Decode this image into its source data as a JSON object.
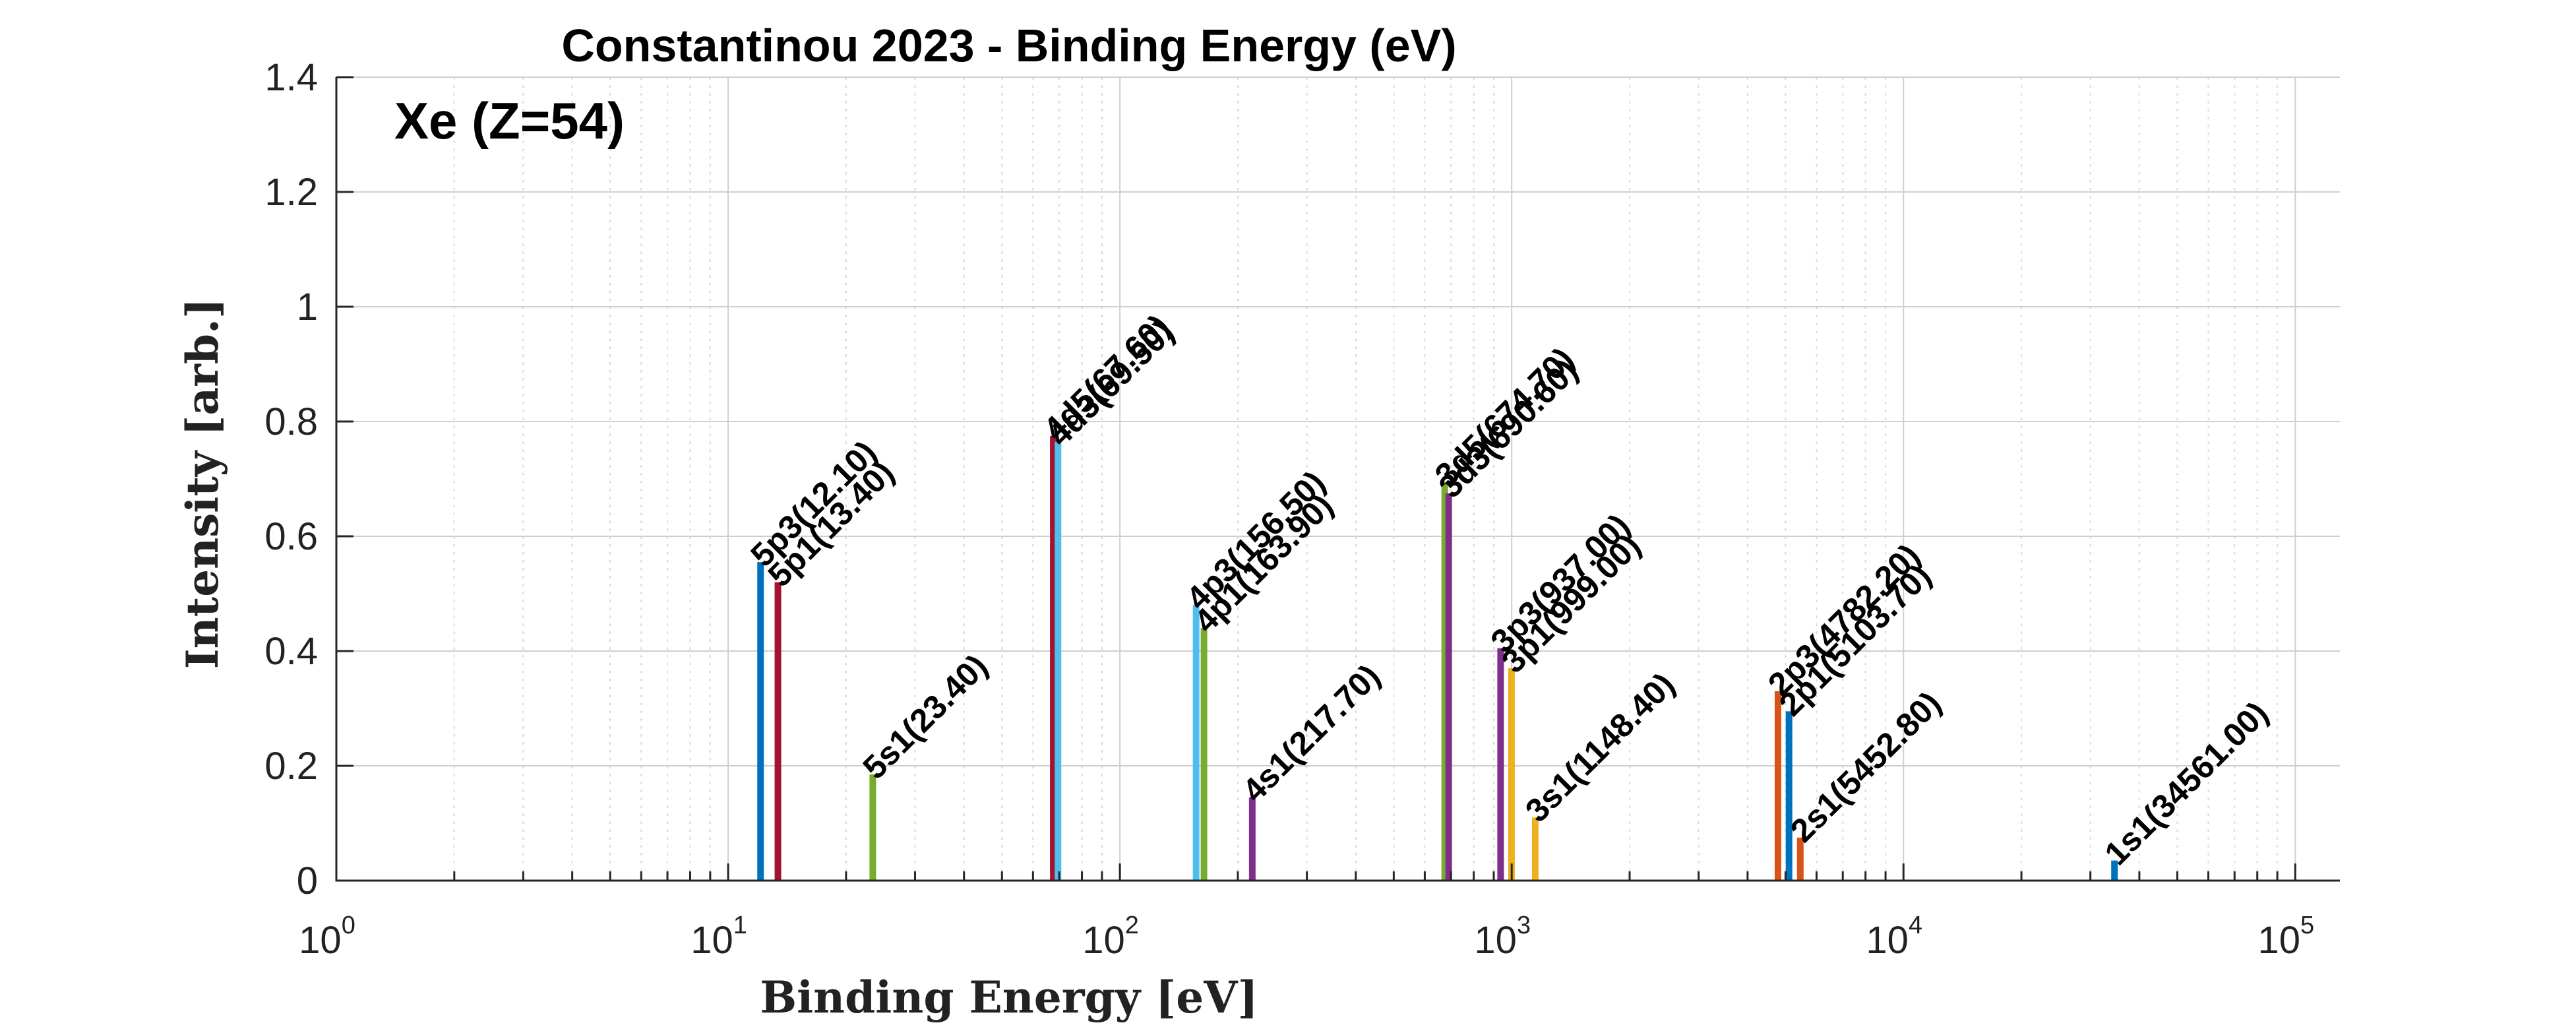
{
  "chart_data": {
    "type": "bar",
    "title": "Constantinou 2023 - Binding Energy (eV)",
    "annotation": "Xe (Z=54)",
    "xlabel": "Binding Energy [eV]",
    "ylabel": "Intensity [arb.]",
    "xscale": "log",
    "xlim": [
      1,
      130000
    ],
    "ylim": [
      0,
      1.4
    ],
    "x_ticks": [
      {
        "base": "10",
        "exp": "0",
        "value": 1
      },
      {
        "base": "10",
        "exp": "1",
        "value": 10
      },
      {
        "base": "10",
        "exp": "2",
        "value": 100
      },
      {
        "base": "10",
        "exp": "3",
        "value": 1000
      },
      {
        "base": "10",
        "exp": "4",
        "value": 10000
      },
      {
        "base": "10",
        "exp": "5",
        "value": 100000
      }
    ],
    "y_ticks": [
      "0",
      "0.2",
      "0.4",
      "0.6",
      "0.8",
      "1",
      "1.2",
      "1.4"
    ],
    "grid": true,
    "series": [
      {
        "label": "5p3(12.10)",
        "x": 12.1,
        "y": 0.555,
        "color": "#0072BD"
      },
      {
        "label": "5p1(13.40)",
        "x": 13.4,
        "y": 0.52,
        "color": "#A2142F"
      },
      {
        "label": "5s1(23.40)",
        "x": 23.4,
        "y": 0.185,
        "color": "#77AC30"
      },
      {
        "label": "4d5(67.60)",
        "x": 67.6,
        "y": 0.775,
        "color": "#A2142F"
      },
      {
        "label": "4d3(69.50)",
        "x": 69.5,
        "y": 0.765,
        "color": "#4DBEEE"
      },
      {
        "label": "4p3(156.50)",
        "x": 156.5,
        "y": 0.48,
        "color": "#4DBEEE"
      },
      {
        "label": "4p1(163.90)",
        "x": 163.9,
        "y": 0.44,
        "color": "#77AC30"
      },
      {
        "label": "4s1(217.70)",
        "x": 217.7,
        "y": 0.145,
        "color": "#7E2F8E"
      },
      {
        "label": "3d5(674.70)",
        "x": 674.7,
        "y": 0.695,
        "color": "#77AC30"
      },
      {
        "label": "3d3(690.60)",
        "x": 690.6,
        "y": 0.675,
        "color": "#7E2F8E"
      },
      {
        "label": "3p3(937.00)",
        "x": 937.0,
        "y": 0.405,
        "color": "#7E2F8E"
      },
      {
        "label": "3p1(999.00)",
        "x": 999.0,
        "y": 0.37,
        "color": "#EDB120"
      },
      {
        "label": "3s1(1148.40)",
        "x": 1148.4,
        "y": 0.11,
        "color": "#EDB120"
      },
      {
        "label": "2p3(4782.20)",
        "x": 4782.2,
        "y": 0.33,
        "color": "#D95319"
      },
      {
        "label": "2p1(5103.70)",
        "x": 5103.7,
        "y": 0.295,
        "color": "#0072BD"
      },
      {
        "label": "2s1(5452.80)",
        "x": 5452.8,
        "y": 0.075,
        "color": "#D95319"
      },
      {
        "label": "1s1(34561.00)",
        "x": 34561.0,
        "y": 0.035,
        "color": "#0072BD"
      }
    ]
  }
}
